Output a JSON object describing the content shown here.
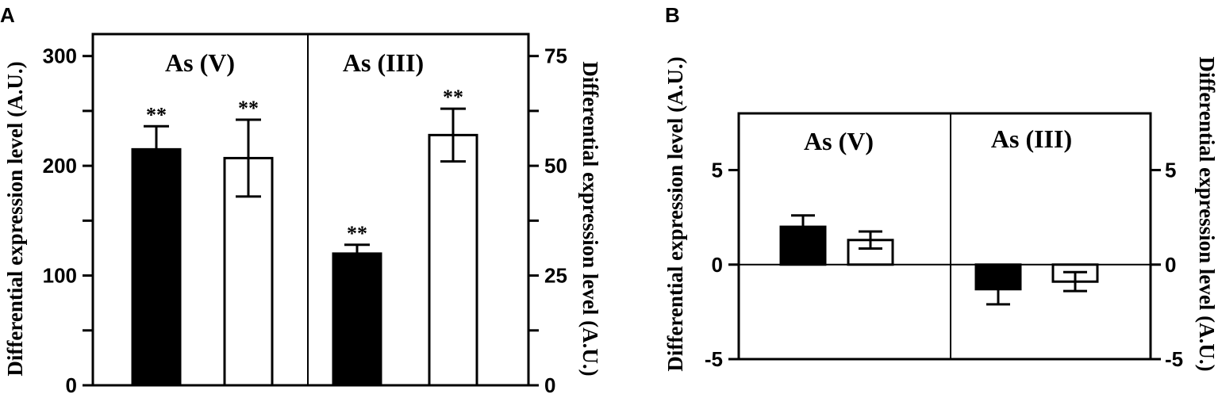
{
  "chart_data": [
    {
      "type": "bar",
      "panel_label": "A",
      "groups": [
        {
          "name": "As (V)",
          "axis": "left",
          "ylim": [
            0,
            320
          ],
          "bars": [
            {
              "fill": "#000000",
              "value": 215,
              "error": 21,
              "annotation": "**"
            },
            {
              "fill": "#ffffff",
              "value": 207,
              "error": 35,
              "annotation": "**"
            }
          ]
        },
        {
          "name": "As (III)",
          "axis": "right",
          "ylim": [
            0,
            80
          ],
          "bars": [
            {
              "fill": "#000000",
              "value": 30,
              "error": 2,
              "annotation": "**"
            },
            {
              "fill": "#ffffff",
              "value": 57,
              "error": 6,
              "annotation": "**"
            }
          ]
        }
      ],
      "left_axis": {
        "ticks": [
          0,
          100,
          200,
          300
        ],
        "minor_ticks": [
          50,
          150,
          250
        ],
        "label": "Differential expression  level (A.U.)"
      },
      "right_axis": {
        "ticks": [
          0,
          25,
          50,
          75
        ],
        "minor_ticks": [
          12.5,
          37.5,
          62.5
        ],
        "label": "Differential expression  level (A.U.)"
      },
      "tick_labels_left": [
        "0",
        "100",
        "200",
        "300"
      ],
      "tick_labels_right": [
        "0",
        "25",
        "50",
        "75"
      ]
    },
    {
      "type": "bar",
      "panel_label": "B",
      "ylim": [
        -5,
        8
      ],
      "groups": [
        {
          "name": "As (V)",
          "bars": [
            {
              "fill": "#000000",
              "value": 2.0,
              "error": 0.6
            },
            {
              "fill": "#ffffff",
              "value": 1.3,
              "error": 0.45
            }
          ]
        },
        {
          "name": "As (III)",
          "bars": [
            {
              "fill": "#000000",
              "value": -1.3,
              "error": 0.8
            },
            {
              "fill": "#ffffff",
              "value": -0.9,
              "error": 0.5
            }
          ]
        }
      ],
      "left_axis": {
        "ticks": [
          -5,
          0,
          5
        ],
        "label": "Differential expression  level (A.U.)"
      },
      "right_axis": {
        "ticks": [
          -5,
          0,
          5
        ],
        "label": "Differential expression  level (A.U.)"
      },
      "tick_labels_left": [
        "-5",
        "0",
        "5"
      ],
      "tick_labels_right": [
        "-5",
        "0",
        "5"
      ]
    }
  ]
}
